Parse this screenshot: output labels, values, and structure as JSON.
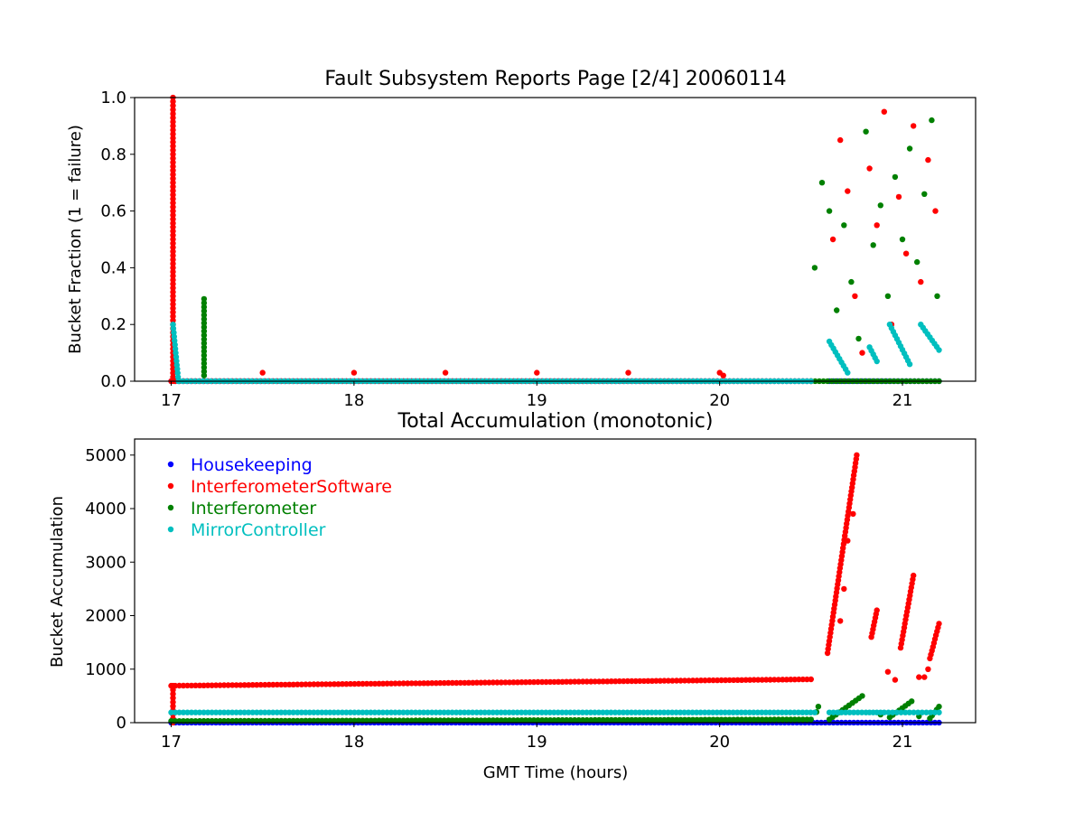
{
  "chart_data": [
    {
      "type": "scatter",
      "title": "Fault Subsystem Reports Page [2/4] 20060114",
      "xlabel": "",
      "ylabel": "Bucket Fraction (1 = failure)",
      "xlim": [
        16.8,
        21.4
      ],
      "ylim": [
        0,
        1.0
      ],
      "xticks": [
        "17",
        "18",
        "19",
        "20",
        "21"
      ],
      "yticks": [
        "0.0",
        "0.2",
        "0.4",
        "0.6",
        "0.8",
        "1.0"
      ],
      "grid": false,
      "series": [
        {
          "name": "Housekeeping",
          "color": "#0000ff",
          "segments": [
            [
              17.0,
              0.0,
              20.5,
              0.0
            ],
            [
              20.6,
              0.0,
              21.2,
              0.0
            ]
          ],
          "points": []
        },
        {
          "name": "InterferometerSoftware",
          "color": "#ff0000",
          "segments": [
            [
              17.01,
              0.0,
              17.01,
              1.0
            ],
            [
              17.0,
              0.0,
              20.5,
              0.0
            ]
          ],
          "points": [
            [
              17.5,
              0.03
            ],
            [
              18.0,
              0.03
            ],
            [
              18.5,
              0.03
            ],
            [
              19.0,
              0.03
            ],
            [
              19.5,
              0.03
            ],
            [
              20.0,
              0.03
            ],
            [
              20.02,
              0.02
            ],
            [
              20.62,
              0.5
            ],
            [
              20.66,
              0.85
            ],
            [
              20.7,
              0.67
            ],
            [
              20.74,
              0.3
            ],
            [
              20.78,
              0.1
            ],
            [
              20.82,
              0.75
            ],
            [
              20.86,
              0.55
            ],
            [
              20.9,
              0.95
            ],
            [
              20.94,
              0.2
            ],
            [
              20.98,
              0.65
            ],
            [
              21.02,
              0.45
            ],
            [
              21.06,
              0.9
            ],
            [
              21.1,
              0.35
            ],
            [
              21.14,
              0.78
            ],
            [
              21.18,
              0.6
            ]
          ]
        },
        {
          "name": "Interferometer",
          "color": "#008000",
          "segments": [
            [
              17.18,
              0.02,
              17.18,
              0.29
            ],
            [
              20.5,
              0.0,
              21.2,
              0.0
            ]
          ],
          "points": [
            [
              20.52,
              0.4
            ],
            [
              20.56,
              0.7
            ],
            [
              20.6,
              0.6
            ],
            [
              20.64,
              0.25
            ],
            [
              20.68,
              0.55
            ],
            [
              20.72,
              0.35
            ],
            [
              20.76,
              0.15
            ],
            [
              20.8,
              0.88
            ],
            [
              20.84,
              0.48
            ],
            [
              20.88,
              0.62
            ],
            [
              20.92,
              0.3
            ],
            [
              20.96,
              0.72
            ],
            [
              21.0,
              0.5
            ],
            [
              21.04,
              0.82
            ],
            [
              21.08,
              0.42
            ],
            [
              21.12,
              0.66
            ],
            [
              21.16,
              0.92
            ],
            [
              21.19,
              0.3
            ]
          ]
        },
        {
          "name": "MirrorController",
          "color": "#00bfbf",
          "segments": [
            [
              17.01,
              0.2,
              17.04,
              0.0
            ],
            [
              17.04,
              0.0,
              20.5,
              0.0
            ],
            [
              20.6,
              0.14,
              20.7,
              0.03
            ],
            [
              20.82,
              0.12,
              20.86,
              0.07
            ],
            [
              20.93,
              0.2,
              21.04,
              0.06
            ],
            [
              21.1,
              0.2,
              21.2,
              0.11
            ]
          ],
          "points": []
        }
      ]
    },
    {
      "type": "scatter",
      "title": "Total Accumulation (monotonic)",
      "xlabel": "GMT Time (hours)",
      "ylabel": "Bucket Accumulation",
      "xlim": [
        16.8,
        21.4
      ],
      "ylim": [
        0,
        5300
      ],
      "xticks": [
        "17",
        "18",
        "19",
        "20",
        "21"
      ],
      "yticks": [
        "0",
        "1000",
        "2000",
        "3000",
        "4000",
        "5000"
      ],
      "grid": false,
      "legend": "upper-left",
      "series": [
        {
          "name": "Housekeeping",
          "color": "#0000ff",
          "segments": [
            [
              17.0,
              0,
              21.2,
              0
            ]
          ],
          "points": []
        },
        {
          "name": "InterferometerSoftware",
          "color": "#ff0000",
          "segments": [
            [
              17.01,
              0,
              17.01,
              690
            ],
            [
              17.0,
              690,
              20.5,
              810
            ],
            [
              20.59,
              1300,
              20.75,
              5000
            ],
            [
              20.83,
              1600,
              20.86,
              2100
            ],
            [
              20.99,
              1400,
              21.06,
              2750
            ],
            [
              21.15,
              1200,
              21.2,
              1850
            ]
          ],
          "points": [
            [
              20.66,
              1900
            ],
            [
              20.68,
              2500
            ],
            [
              20.7,
              3400
            ],
            [
              20.73,
              3900
            ],
            [
              20.92,
              950
            ],
            [
              20.96,
              800
            ],
            [
              21.09,
              850
            ],
            [
              21.12,
              850
            ],
            [
              21.14,
              1000
            ]
          ]
        },
        {
          "name": "Interferometer",
          "color": "#008000",
          "segments": [
            [
              17.0,
              30,
              20.5,
              60
            ],
            [
              20.6,
              60,
              20.78,
              500
            ],
            [
              20.93,
              100,
              21.05,
              400
            ],
            [
              21.15,
              80,
              21.2,
              300
            ]
          ],
          "points": [
            [
              20.53,
              200
            ],
            [
              20.54,
              300
            ],
            [
              20.88,
              150
            ],
            [
              21.09,
              120
            ]
          ]
        },
        {
          "name": "MirrorController",
          "color": "#00bfbf",
          "segments": [
            [
              17.0,
              190,
              20.52,
              190
            ],
            [
              20.6,
              190,
              20.8,
              190
            ],
            [
              20.82,
              190,
              20.88,
              190
            ],
            [
              20.9,
              190,
              21.2,
              190
            ]
          ],
          "points": []
        }
      ]
    }
  ]
}
